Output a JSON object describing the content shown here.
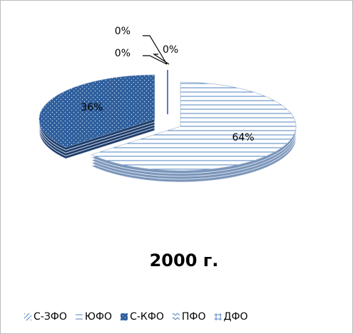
{
  "chart_data": {
    "type": "pie3d",
    "title": "2000 г.",
    "categories": [
      "С-ЗФО",
      "ЮФО",
      "С-КФО",
      "ПФО",
      "ДФО"
    ],
    "values": [
      0,
      64,
      36,
      0,
      0
    ],
    "value_labels": [
      "0%",
      "64%",
      "36%",
      "0%",
      "0%"
    ],
    "colors": [
      "#4f81bd",
      "#4f81bd",
      "#2e5e9c",
      "#4f81bd",
      "#4f81bd"
    ],
    "patterns": [
      "diag",
      "hstripe",
      "dots",
      "zigzag",
      "grid"
    ],
    "legend": "bottom"
  }
}
